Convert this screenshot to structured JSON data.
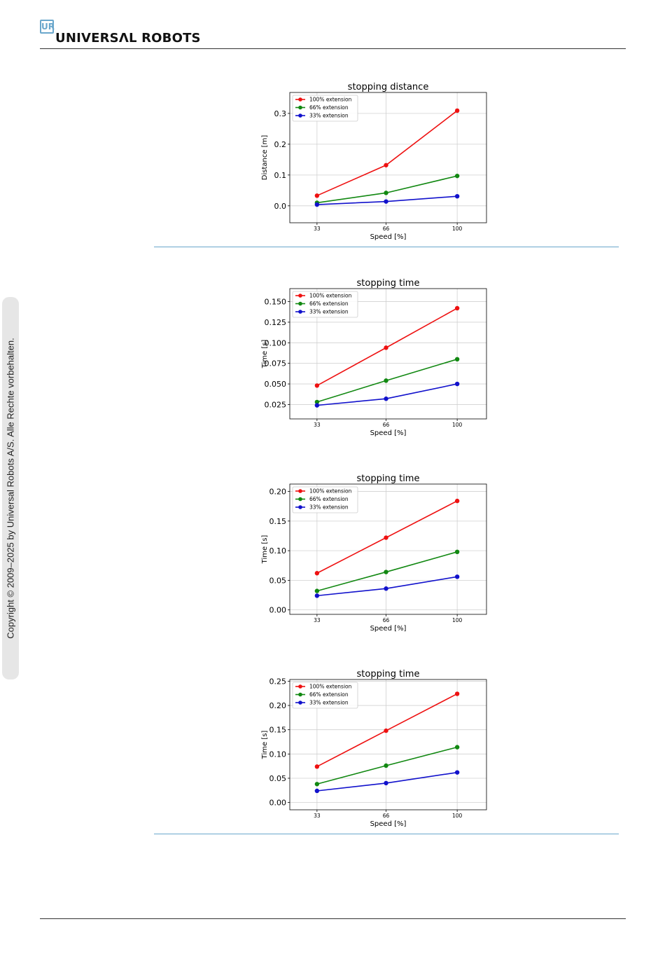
{
  "header": {
    "logo_mark": "UR",
    "logo_text": "UNIVERSΛL ROBOTS"
  },
  "sidebar": {
    "copyright": "Copyright © 2009–2025 by Universal Robots A/S. Alle Rechte vorbehalten."
  },
  "colors": {
    "accent_rule": "#6aa7cc",
    "series_100": "#ee1111",
    "series_66": "#118811",
    "series_33": "#1111cc"
  },
  "chart_data": [
    {
      "type": "line",
      "title": "stopping distance",
      "xlabel": "Speed [%]",
      "ylabel": "Distance [m]",
      "x": [
        33,
        66,
        100
      ],
      "xlim": [
        20,
        114
      ],
      "ylim": [
        -0.055,
        0.368
      ],
      "yticks": [
        0.0,
        0.1,
        0.2,
        0.3
      ],
      "ytick_labels": [
        "0.0",
        "0.1",
        "0.2",
        "0.3"
      ],
      "grid": true,
      "legend": "top-left",
      "series": [
        {
          "name": "100% extension",
          "color": "#ee1111",
          "values": [
            0.033,
            0.132,
            0.309
          ]
        },
        {
          "name": "66% extension",
          "color": "#118811",
          "values": [
            0.01,
            0.042,
            0.097
          ]
        },
        {
          "name": "33% extension",
          "color": "#1111cc",
          "values": [
            0.004,
            0.014,
            0.031
          ]
        }
      ]
    },
    {
      "type": "line",
      "title": "stopping time",
      "xlabel": "Speed [%]",
      "ylabel": "Time [s]",
      "x": [
        33,
        66,
        100
      ],
      "xlim": [
        20,
        114
      ],
      "ylim": [
        0.0075,
        0.1658
      ],
      "yticks": [
        0.025,
        0.05,
        0.075,
        0.1,
        0.125,
        0.15
      ],
      "ytick_labels": [
        "0.025",
        "0.050",
        "0.075",
        "0.100",
        "0.125",
        "0.150"
      ],
      "grid": true,
      "legend": "top-left",
      "series": [
        {
          "name": "100% extension",
          "color": "#ee1111",
          "values": [
            0.048,
            0.094,
            0.142
          ]
        },
        {
          "name": "66% extension",
          "color": "#118811",
          "values": [
            0.028,
            0.054,
            0.08
          ]
        },
        {
          "name": "33% extension",
          "color": "#1111cc",
          "values": [
            0.024,
            0.032,
            0.05
          ]
        }
      ]
    },
    {
      "type": "line",
      "title": "stopping time",
      "xlabel": "Speed [%]",
      "ylabel": "Time [s]",
      "x": [
        33,
        66,
        100
      ],
      "xlim": [
        20,
        114
      ],
      "ylim": [
        -0.0075,
        0.2125
      ],
      "yticks": [
        0.0,
        0.05,
        0.1,
        0.15,
        0.2
      ],
      "ytick_labels": [
        "0.00",
        "0.05",
        "0.10",
        "0.15",
        "0.20"
      ],
      "grid": true,
      "legend": "top-left",
      "series": [
        {
          "name": "100% extension",
          "color": "#ee1111",
          "values": [
            0.062,
            0.122,
            0.184
          ]
        },
        {
          "name": "66% extension",
          "color": "#118811",
          "values": [
            0.032,
            0.064,
            0.098
          ]
        },
        {
          "name": "33% extension",
          "color": "#1111cc",
          "values": [
            0.024,
            0.036,
            0.056
          ]
        }
      ]
    },
    {
      "type": "line",
      "title": "stopping time",
      "xlabel": "Speed [%]",
      "ylabel": "Time [s]",
      "x": [
        33,
        66,
        100
      ],
      "xlim": [
        20,
        114
      ],
      "ylim": [
        -0.015,
        0.2535
      ],
      "yticks": [
        0.0,
        0.05,
        0.1,
        0.15,
        0.2,
        0.25
      ],
      "ytick_labels": [
        "0.00",
        "0.05",
        "0.10",
        "0.15",
        "0.20",
        "0.25"
      ],
      "grid": true,
      "legend": "top-left",
      "series": [
        {
          "name": "100% extension",
          "color": "#ee1111",
          "values": [
            0.074,
            0.148,
            0.224
          ]
        },
        {
          "name": "66% extension",
          "color": "#118811",
          "values": [
            0.038,
            0.076,
            0.114
          ]
        },
        {
          "name": "33% extension",
          "color": "#1111cc",
          "values": [
            0.024,
            0.04,
            0.062
          ]
        }
      ]
    }
  ]
}
